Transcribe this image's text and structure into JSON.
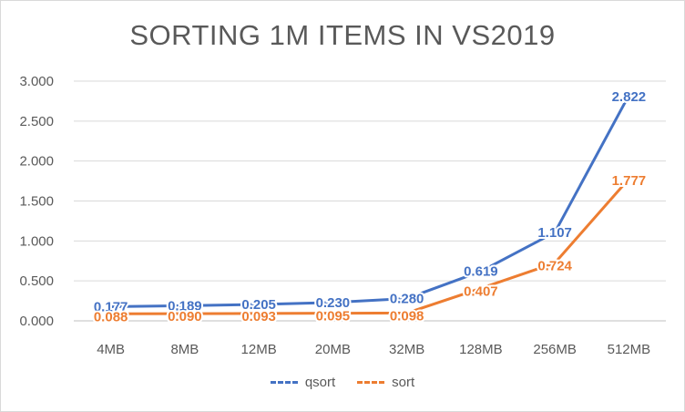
{
  "chart_data": {
    "type": "line",
    "title": "SORTING 1M ITEMS IN VS2019",
    "categories": [
      "4MB",
      "8MB",
      "12MB",
      "20MB",
      "32MB",
      "128MB",
      "256MB",
      "512MB"
    ],
    "ylim": [
      0,
      3
    ],
    "yticks": [
      "0.000",
      "0.500",
      "1.000",
      "1.500",
      "2.000",
      "2.500",
      "3.000"
    ],
    "grid": true,
    "legend_position": "bottom",
    "series": [
      {
        "name": "qsort",
        "color": "#4472c4",
        "values": [
          0.177,
          0.189,
          0.205,
          0.23,
          0.28,
          0.619,
          1.107,
          2.822
        ],
        "labels": [
          "0.177",
          "0.189",
          "0.205",
          "0.230",
          "0.280",
          "0.619",
          "1.107",
          "2.822"
        ]
      },
      {
        "name": "sort",
        "color": "#ed7d31",
        "values": [
          0.088,
          0.09,
          0.093,
          0.095,
          0.098,
          0.407,
          0.724,
          1.777
        ],
        "labels": [
          "0.088",
          "0.090",
          "0.093",
          "0.095",
          "0.098",
          "0.407",
          "0.724",
          "1.777"
        ]
      }
    ]
  }
}
